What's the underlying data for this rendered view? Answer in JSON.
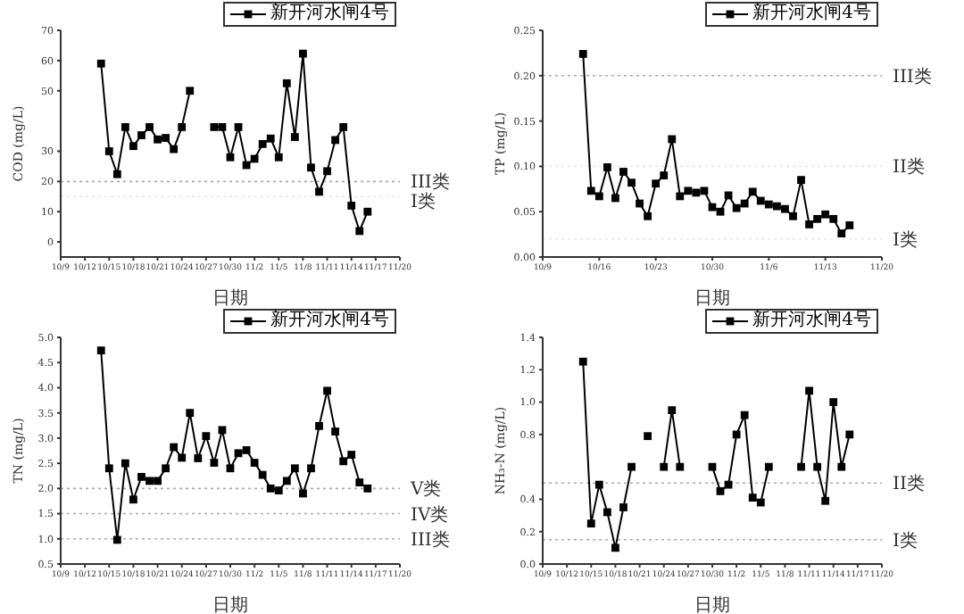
{
  "chart_data": [
    {
      "type": "line",
      "xlabel": "日期",
      "ylabel": "COD (mg/L)",
      "legend": "top right",
      "marker": "square",
      "line_style": "solid",
      "x": [
        "--10-14",
        "--10-15",
        "--10-16",
        "--10-17",
        "--10-18",
        "--10-19",
        "--10-20",
        "--10-21",
        "--10-22",
        "--10-23",
        "--10-24",
        "--10-25",
        "--10-26",
        "--10-27",
        "--10-28",
        "--10-29",
        "--10-30",
        "--10-31",
        "--11-01",
        "--11-02",
        "--11-03",
        "--11-04",
        "--11-05",
        "--11-06",
        "--11-07",
        "--11-08",
        "--11-09",
        "--11-10",
        "--11-11",
        "--11-12",
        "--11-13",
        "--11-14",
        "--11-15",
        "--11-16"
      ],
      "xlim": [
        "--10-09",
        "--11-20"
      ],
      "xticks": [
        {
          "value": "--10-09",
          "label": "10/9"
        },
        {
          "value": "--10-12",
          "label": "10/12"
        },
        {
          "value": "--10-15",
          "label": "10/15"
        },
        {
          "value": "--10-18",
          "label": "10/18"
        },
        {
          "value": "--10-21",
          "label": "10/21"
        },
        {
          "value": "--10-24",
          "label": "10/24"
        },
        {
          "value": "--10-27",
          "label": "10/27"
        },
        {
          "value": "--10-30",
          "label": "10/30"
        },
        {
          "value": "--11-02",
          "label": "11/2"
        },
        {
          "value": "--11-05",
          "label": "11/5"
        },
        {
          "value": "--11-08",
          "label": "11/8"
        },
        {
          "value": "--11-11",
          "label": "11/11"
        },
        {
          "value": "--11-14",
          "label": "11/14"
        },
        {
          "value": "--11-17",
          "label": "11/17"
        },
        {
          "value": "--11-20",
          "label": "11/20"
        }
      ],
      "ylim": [
        -5,
        70
      ],
      "yticks": [
        0,
        10,
        20,
        30,
        50,
        60,
        70
      ],
      "ref_lines": [
        {
          "axis": "y",
          "value": 20,
          "label": "III类",
          "color": "#aaaaaa",
          "line_style": "dotted"
        },
        {
          "axis": "y",
          "value": 15,
          "label": "I类",
          "color": "#e6e6e6",
          "line_style": "dotted"
        }
      ],
      "series": [
        {
          "name": "新开河水闸4号",
          "color": "#000000",
          "values": [
            59,
            30,
            22.4,
            38,
            31.7,
            35.3,
            38,
            33.9,
            34.4,
            30.7,
            38,
            50,
            null,
            null,
            38,
            38,
            28,
            38,
            25.4,
            27.5,
            32.4,
            34.2,
            28,
            52.5,
            34.7,
            62.3,
            24.6,
            16.6,
            23.4,
            33.7,
            38,
            12,
            3.6,
            10
          ]
        }
      ]
    },
    {
      "type": "line",
      "xlabel": "日期",
      "ylabel": "TP (mg/L)",
      "legend": "top right",
      "marker": "square",
      "line_style": "solid",
      "x": [
        "--10-14",
        "--10-15",
        "--10-16",
        "--10-17",
        "--10-18",
        "--10-19",
        "--10-20",
        "--10-21",
        "--10-22",
        "--10-23",
        "--10-24",
        "--10-25",
        "--10-26",
        "--10-27",
        "--10-28",
        "--10-29",
        "--10-30",
        "--10-31",
        "--11-01",
        "--11-02",
        "--11-03",
        "--11-04",
        "--11-05",
        "--11-06",
        "--11-07",
        "--11-08",
        "--11-09",
        "--11-10",
        "--11-11",
        "--11-12",
        "--11-13",
        "--11-14",
        "--11-15",
        "--11-16"
      ],
      "xlim": [
        "--10-09",
        "--11-20"
      ],
      "xticks": [
        {
          "value": "--10-09",
          "label": "10/9"
        },
        {
          "value": "--10-16",
          "label": "10/16"
        },
        {
          "value": "--10-23",
          "label": "10/23"
        },
        {
          "value": "--10-30",
          "label": "10/30"
        },
        {
          "value": "--11-06",
          "label": "11/6"
        },
        {
          "value": "--11-13",
          "label": "11/13"
        },
        {
          "value": "--11-20",
          "label": "11/20"
        }
      ],
      "ylim": [
        0,
        0.25
      ],
      "yticks": [
        {
          "value": 0,
          "label": "0.00"
        },
        {
          "value": 0.05,
          "label": "0.05"
        },
        {
          "value": 0.1,
          "label": "0.10"
        },
        {
          "value": 0.15,
          "label": "0.15"
        },
        {
          "value": 0.2,
          "label": "0.20"
        },
        {
          "value": 0.25,
          "label": "0.25"
        }
      ],
      "ref_lines": [
        {
          "axis": "y",
          "value": 0.2,
          "label": "III类",
          "color": "#aaaaaa",
          "line_style": "dotted"
        },
        {
          "axis": "y",
          "value": 0.1,
          "label": "II类",
          "color": "#e6e6e6",
          "line_style": "dotted"
        },
        {
          "axis": "y",
          "value": 0.02,
          "label": "I类",
          "color": "#e6e6e6",
          "line_style": "dotted"
        }
      ],
      "series": [
        {
          "name": "新开河水闸4号",
          "color": "#000000",
          "values": [
            0.224,
            0.073,
            0.067,
            0.099,
            0.065,
            0.094,
            0.082,
            0.059,
            0.045,
            0.081,
            0.09,
            0.13,
            0.067,
            0.073,
            0.071,
            0.073,
            0.055,
            0.05,
            0.068,
            0.054,
            0.059,
            0.072,
            0.062,
            0.058,
            0.056,
            0.053,
            0.045,
            0.085,
            0.036,
            0.042,
            0.047,
            0.042,
            0.026,
            0.035
          ]
        }
      ]
    },
    {
      "type": "line",
      "xlabel": "日期",
      "ylabel": "TN (mg/L)",
      "legend": "top right",
      "marker": "square",
      "line_style": "solid",
      "x": [
        "--10-14",
        "--10-15",
        "--10-16",
        "--10-17",
        "--10-18",
        "--10-19",
        "--10-20",
        "--10-21",
        "--10-22",
        "--10-23",
        "--10-24",
        "--10-25",
        "--10-26",
        "--10-27",
        "--10-28",
        "--10-29",
        "--10-30",
        "--10-31",
        "--11-01",
        "--11-02",
        "--11-03",
        "--11-04",
        "--11-05",
        "--11-06",
        "--11-07",
        "--11-08",
        "--11-09",
        "--11-10",
        "--11-11",
        "--11-12",
        "--11-13",
        "--11-14",
        "--11-15",
        "--11-16"
      ],
      "xlim": [
        "--10-09",
        "--11-20"
      ],
      "xticks": [
        {
          "value": "--10-09",
          "label": "10/9"
        },
        {
          "value": "--10-12",
          "label": "10/12"
        },
        {
          "value": "--10-15",
          "label": "10/15"
        },
        {
          "value": "--10-18",
          "label": "10/18"
        },
        {
          "value": "--10-21",
          "label": "10/21"
        },
        {
          "value": "--10-24",
          "label": "10/24"
        },
        {
          "value": "--10-27",
          "label": "10/27"
        },
        {
          "value": "--10-30",
          "label": "10/30"
        },
        {
          "value": "--11-02",
          "label": "11/2"
        },
        {
          "value": "--11-05",
          "label": "11/5"
        },
        {
          "value": "--11-08",
          "label": "11/8"
        },
        {
          "value": "--11-11",
          "label": "11/11"
        },
        {
          "value": "--11-14",
          "label": "11/14"
        },
        {
          "value": "--11-17",
          "label": "11/17"
        },
        {
          "value": "--11-20",
          "label": "11/20"
        }
      ],
      "ylim": [
        0.5,
        5
      ],
      "yticks": [
        0.5,
        {
          "value": 1,
          "label": "1.0"
        },
        1.5,
        {
          "value": 2,
          "label": "2.0"
        },
        2.5,
        {
          "value": 3,
          "label": "3.0"
        },
        3.5,
        {
          "value": 4,
          "label": "4.0"
        },
        4.5,
        {
          "value": 5,
          "label": "5.0"
        }
      ],
      "ref_lines": [
        {
          "axis": "y",
          "value": 2,
          "label": "V类",
          "color": "#aaaaaa",
          "line_style": "dotted"
        },
        {
          "axis": "y",
          "value": 1.5,
          "label": "IV类",
          "color": "#aaaaaa",
          "line_style": "dotted"
        },
        {
          "axis": "y",
          "value": 1,
          "label": "III类",
          "color": "#aaaaaa",
          "line_style": "dotted"
        }
      ],
      "series": [
        {
          "name": "新开河水闸4号",
          "color": "#000000",
          "values": [
            4.74,
            2.4,
            0.98,
            2.5,
            1.78,
            2.23,
            2.15,
            2.15,
            2.4,
            2.82,
            2.61,
            3.5,
            2.6,
            3.04,
            2.51,
            3.16,
            2.4,
            2.7,
            2.76,
            2.51,
            2.27,
            2,
            1.96,
            2.15,
            2.4,
            1.9,
            2.4,
            3.24,
            3.94,
            3.13,
            2.54,
            2.67,
            2.12,
            2
          ]
        }
      ]
    },
    {
      "type": "line",
      "xlabel": "日期",
      "ylabel": "NH₃-N (mg/L)",
      "legend": "top right",
      "marker": "square",
      "line_style": "solid",
      "x": [
        "--10-14",
        "--10-15",
        "--10-16",
        "--10-17",
        "--10-18",
        "--10-19",
        "--10-20",
        "--10-21",
        "--10-22",
        "--10-23",
        "--10-24",
        "--10-25",
        "--10-26",
        "--10-27",
        "--10-28",
        "--10-29",
        "--10-30",
        "--10-31",
        "--11-01",
        "--11-02",
        "--11-03",
        "--11-04",
        "--11-05",
        "--11-06",
        "--11-07",
        "--11-08",
        "--11-09",
        "--11-10",
        "--11-11",
        "--11-12",
        "--11-13",
        "--11-14",
        "--11-15",
        "--11-16"
      ],
      "xlim": [
        "--10-09",
        "--11-20"
      ],
      "xticks": [
        {
          "value": "--10-09",
          "label": "10/9"
        },
        {
          "value": "--10-12",
          "label": "10/12"
        },
        {
          "value": "--10-15",
          "label": "10/15"
        },
        {
          "value": "--10-18",
          "label": "10/18"
        },
        {
          "value": "--10-21",
          "label": "10/21"
        },
        {
          "value": "--10-24",
          "label": "10/24"
        },
        {
          "value": "--10-27",
          "label": "10/27"
        },
        {
          "value": "--10-30",
          "label": "10/30"
        },
        {
          "value": "--11-02",
          "label": "11/2"
        },
        {
          "value": "--11-05",
          "label": "11/5"
        },
        {
          "value": "--11-08",
          "label": "11/8"
        },
        {
          "value": "--11-11",
          "label": "11/11"
        },
        {
          "value": "--11-14",
          "label": "11/14"
        },
        {
          "value": "--11-17",
          "label": "11/17"
        },
        {
          "value": "--11-20",
          "label": "11/20"
        }
      ],
      "ylim": [
        0,
        1.4
      ],
      "yticks": [
        {
          "value": 0,
          "label": "0.0"
        },
        0.2,
        0.4,
        0.8,
        {
          "value": 1,
          "label": "1.0"
        },
        1.2,
        1.4
      ],
      "ref_lines": [
        {
          "axis": "y",
          "value": 0.5,
          "label": "II类",
          "color": "#aaaaaa",
          "line_style": "dotted"
        },
        {
          "axis": "y",
          "value": 0.15,
          "label": "I类",
          "color": "#aaaaaa",
          "line_style": "dotted"
        }
      ],
      "series": [
        {
          "name": "新开河水闸4号",
          "color": "#000000",
          "values": [
            1.25,
            0.25,
            0.49,
            0.32,
            0.1,
            0.35,
            0.6,
            null,
            0.79,
            null,
            0.6,
            0.95,
            0.6,
            null,
            null,
            null,
            0.6,
            0.45,
            0.49,
            0.8,
            0.92,
            0.41,
            0.38,
            0.6,
            null,
            null,
            null,
            0.6,
            1.07,
            0.6,
            0.39,
            1,
            0.6,
            0.8
          ]
        }
      ]
    }
  ]
}
